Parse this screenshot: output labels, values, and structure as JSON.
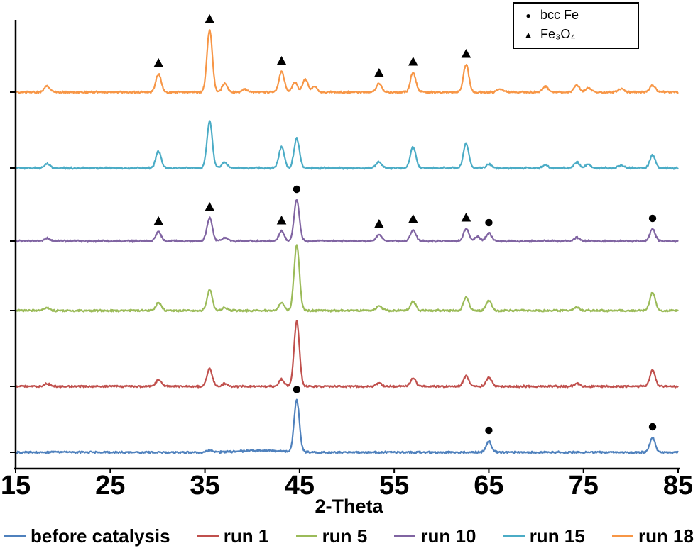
{
  "chart_data": {
    "type": "line",
    "title": "",
    "xlabel": "2-Theta",
    "x_range": [
      15,
      85
    ],
    "x_ticks": [
      15,
      25,
      35,
      45,
      55,
      65,
      75,
      85
    ],
    "grid": false,
    "legend_position": "bottom",
    "axis_color": "#000000",
    "marker_legend": [
      {
        "symbol": "●",
        "label": "bcc Fe"
      },
      {
        "symbol": "▲",
        "label": "Fe₃O₄"
      }
    ],
    "series": [
      {
        "name": "before catalysis",
        "color": "#4F81BD",
        "peaks": [
          [
            35.5,
            3
          ],
          [
            41.0,
            2.5,
            2.2
          ],
          [
            44.7,
            73
          ],
          [
            65.0,
            16
          ],
          [
            82.3,
            21
          ]
        ]
      },
      {
        "name": "run 1",
        "color": "#C0504D",
        "peaks": [
          [
            18.3,
            4
          ],
          [
            30.1,
            9
          ],
          [
            35.5,
            25
          ],
          [
            37.1,
            4
          ],
          [
            43.1,
            10
          ],
          [
            44.7,
            92
          ],
          [
            53.4,
            5
          ],
          [
            57.0,
            11
          ],
          [
            62.6,
            15
          ],
          [
            65.0,
            13
          ],
          [
            74.3,
            4
          ],
          [
            82.3,
            23
          ]
        ]
      },
      {
        "name": "run 5",
        "color": "#9BBB59",
        "peaks": [
          [
            18.3,
            4
          ],
          [
            30.1,
            11
          ],
          [
            35.5,
            29
          ],
          [
            37.1,
            4
          ],
          [
            43.1,
            11
          ],
          [
            44.7,
            93
          ],
          [
            53.4,
            7
          ],
          [
            57.0,
            13
          ],
          [
            62.6,
            19
          ],
          [
            65.0,
            14
          ],
          [
            74.3,
            5
          ],
          [
            82.3,
            26
          ]
        ]
      },
      {
        "name": "run 10",
        "color": "#8064A2",
        "peaks": [
          [
            18.3,
            4
          ],
          [
            30.1,
            13
          ],
          [
            35.5,
            33
          ],
          [
            37.1,
            5
          ],
          [
            43.1,
            14
          ],
          [
            44.7,
            58
          ],
          [
            53.4,
            9
          ],
          [
            57.0,
            16
          ],
          [
            62.6,
            18
          ],
          [
            63.8,
            6
          ],
          [
            65.0,
            11
          ],
          [
            74.3,
            5
          ],
          [
            82.3,
            17
          ]
        ]
      },
      {
        "name": "run 15",
        "color": "#4BACC6",
        "peaks": [
          [
            18.3,
            6
          ],
          [
            30.1,
            24
          ],
          [
            35.5,
            66
          ],
          [
            37.1,
            8
          ],
          [
            43.1,
            30
          ],
          [
            44.7,
            42
          ],
          [
            53.4,
            9
          ],
          [
            57.0,
            30
          ],
          [
            62.6,
            35
          ],
          [
            65.0,
            6
          ],
          [
            71.0,
            4
          ],
          [
            74.3,
            8
          ],
          [
            75.5,
            5
          ],
          [
            79.0,
            4
          ],
          [
            82.3,
            18
          ]
        ]
      },
      {
        "name": "run 18",
        "color": "#F79646",
        "peaks": [
          [
            18.3,
            9
          ],
          [
            30.1,
            26
          ],
          [
            35.5,
            88
          ],
          [
            37.1,
            12
          ],
          [
            39.2,
            4
          ],
          [
            43.1,
            29
          ],
          [
            44.5,
            14
          ],
          [
            45.6,
            18
          ],
          [
            46.6,
            8
          ],
          [
            53.4,
            12
          ],
          [
            57.0,
            28
          ],
          [
            62.6,
            39
          ],
          [
            66.2,
            5
          ],
          [
            71.0,
            8
          ],
          [
            74.3,
            10
          ],
          [
            75.5,
            6
          ],
          [
            79.0,
            5
          ],
          [
            82.3,
            10
          ]
        ]
      }
    ],
    "annotations": [
      {
        "series": "before catalysis",
        "x": 44.7,
        "symbol": "circle"
      },
      {
        "series": "before catalysis",
        "x": 65.0,
        "symbol": "circle"
      },
      {
        "series": "before catalysis",
        "x": 82.3,
        "symbol": "circle"
      },
      {
        "series": "run 10",
        "x": 30.1,
        "symbol": "triangle"
      },
      {
        "series": "run 10",
        "x": 35.5,
        "symbol": "triangle"
      },
      {
        "series": "run 10",
        "x": 43.1,
        "symbol": "triangle"
      },
      {
        "series": "run 10",
        "x": 44.7,
        "symbol": "circle"
      },
      {
        "series": "run 10",
        "x": 53.4,
        "symbol": "triangle"
      },
      {
        "series": "run 10",
        "x": 57.0,
        "symbol": "triangle"
      },
      {
        "series": "run 10",
        "x": 62.6,
        "symbol": "triangle"
      },
      {
        "series": "run 10",
        "x": 65.0,
        "symbol": "circle"
      },
      {
        "series": "run 10",
        "x": 82.3,
        "symbol": "circle"
      },
      {
        "series": "run 18",
        "x": 30.1,
        "symbol": "triangle"
      },
      {
        "series": "run 18",
        "x": 35.5,
        "symbol": "triangle"
      },
      {
        "series": "run 18",
        "x": 43.1,
        "symbol": "triangle"
      },
      {
        "series": "run 18",
        "x": 53.4,
        "symbol": "triangle"
      },
      {
        "series": "run 18",
        "x": 57.0,
        "symbol": "triangle"
      },
      {
        "series": "run 18",
        "x": 62.6,
        "symbol": "triangle"
      }
    ]
  }
}
